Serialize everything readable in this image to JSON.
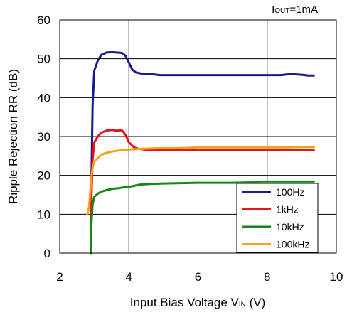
{
  "chart_data": {
    "type": "line",
    "condition": {
      "main": "I",
      "sub": "OUT",
      "rest": "=1mA"
    },
    "xlabel": {
      "main": "Input Bias Voltage V",
      "sub": "IN",
      "rest": " (V)"
    },
    "ylabel": "Ripple Rejection RR (dB)",
    "xlim": [
      2,
      10
    ],
    "ylim": [
      0,
      60
    ],
    "xticks": [
      "2",
      "4",
      "6",
      "8",
      "10"
    ],
    "yticks": [
      "0",
      "10",
      "20",
      "30",
      "40",
      "50",
      "60"
    ],
    "grid": true,
    "legend_position": "bottom-right",
    "series": [
      {
        "name": "100Hz",
        "color": "#1a1a8c",
        "x": [
          2.9,
          2.92,
          2.95,
          3.0,
          3.1,
          3.2,
          3.35,
          3.5,
          3.65,
          3.8,
          3.9,
          4.0,
          4.1,
          4.2,
          4.35,
          4.5,
          4.7,
          4.9,
          5.2,
          5.6,
          6.0,
          6.5,
          7.0,
          7.5,
          8.0,
          8.4,
          8.6,
          8.8,
          9.0,
          9.2,
          9.35
        ],
        "y": [
          2,
          20,
          38,
          47,
          49.5,
          51,
          51.6,
          51.7,
          51.6,
          51.5,
          50.8,
          49,
          47.2,
          46.5,
          46.2,
          46.0,
          46.0,
          45.8,
          45.8,
          45.8,
          45.8,
          45.8,
          45.8,
          45.8,
          45.8,
          45.8,
          46.0,
          46.0,
          45.9,
          45.7,
          45.7
        ]
      },
      {
        "name": "1kHz",
        "color": "#e8141c",
        "x": [
          2.9,
          2.92,
          2.95,
          3.0,
          3.1,
          3.2,
          3.35,
          3.5,
          3.65,
          3.8,
          3.9,
          4.0,
          4.15,
          4.3,
          4.5,
          5.0,
          6.0,
          7.0,
          8.0,
          9.0,
          9.35
        ],
        "y": [
          2,
          15,
          24,
          28.5,
          30,
          31,
          31.5,
          31.7,
          31.5,
          31.6,
          30.5,
          28.5,
          27.2,
          26.8,
          26.6,
          26.5,
          26.5,
          26.5,
          26.5,
          26.5,
          26.5
        ]
      },
      {
        "name": "10kHz",
        "color": "#15861a",
        "x": [
          2.9,
          2.92,
          2.95,
          3.0,
          3.1,
          3.2,
          3.35,
          3.5,
          3.7,
          3.9,
          4.1,
          4.3,
          4.6,
          5.0,
          5.5,
          6.0,
          6.5,
          7.0,
          7.5,
          7.8,
          8.0,
          8.5,
          9.0,
          9.35
        ],
        "y": [
          0,
          8,
          12.5,
          14.5,
          15.3,
          15.8,
          16.2,
          16.5,
          16.7,
          17.0,
          17.2,
          17.6,
          17.8,
          17.9,
          18.0,
          18.1,
          18.1,
          18.1,
          18.2,
          18.4,
          18.4,
          18.4,
          18.4,
          18.4
        ]
      },
      {
        "name": "100kHz",
        "color": "#f7a11a",
        "x": [
          2.8,
          2.85,
          2.9,
          2.95,
          3.0,
          3.1,
          3.2,
          3.35,
          3.5,
          3.7,
          3.9,
          4.1,
          4.3,
          4.6,
          5.0,
          5.5,
          6.0,
          6.5,
          7.0,
          7.5,
          8.0,
          8.5,
          9.0,
          9.35
        ],
        "y": [
          10,
          12,
          18,
          22,
          23.5,
          24.5,
          25.3,
          25.8,
          26.1,
          26.4,
          26.6,
          26.7,
          26.8,
          26.9,
          27.0,
          27.0,
          27.2,
          27.2,
          27.2,
          27.2,
          27.2,
          27.2,
          27.3,
          27.3
        ]
      }
    ]
  }
}
